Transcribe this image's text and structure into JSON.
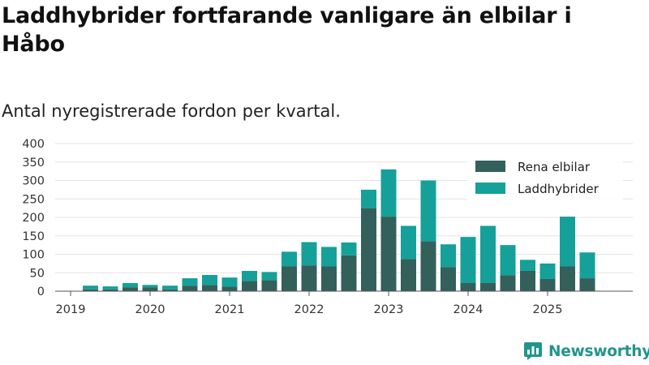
{
  "title": "Laddhybrider fortfarande vanligare än elbilar i Håbo",
  "subtitle": "Antal nyregistrerade fordon per kvartal.",
  "brand": {
    "name": "Newsworthy",
    "logo_icon": "newsworthy-logo-icon"
  },
  "colors": {
    "elbilar": "#33605b",
    "laddhybrider": "#16a09a",
    "grid": "#e3e3e3",
    "axis": "#555555",
    "brand": "#21958c"
  },
  "chart_data": {
    "type": "bar",
    "stacked": true,
    "categories": [
      "2019 Q1",
      "2019 Q2",
      "2019 Q3",
      "2019 Q4",
      "2020 Q1",
      "2020 Q2",
      "2020 Q3",
      "2020 Q4",
      "2021 Q1",
      "2021 Q2",
      "2021 Q3",
      "2021 Q4",
      "2022 Q1",
      "2022 Q2",
      "2022 Q3",
      "2022 Q4",
      "2023 Q1",
      "2023 Q2",
      "2023 Q3",
      "2023 Q4",
      "2024 Q1",
      "2024 Q2",
      "2024 Q3",
      "2024 Q4",
      "2025 Q1",
      "2025 Q2",
      "2025 Q3"
    ],
    "series": [
      {
        "name": "Rena elbilar",
        "color": "#33605b",
        "values": [
          0,
          5,
          5,
          10,
          10,
          5,
          15,
          17,
          12,
          28,
          30,
          67,
          70,
          67,
          97,
          225,
          202,
          87,
          135,
          65,
          22,
          22,
          43,
          55,
          33,
          67,
          35
        ]
      },
      {
        "name": "Laddhybrider",
        "color": "#16a09a",
        "values": [
          0,
          10,
          8,
          12,
          7,
          10,
          20,
          27,
          25,
          27,
          22,
          40,
          63,
          53,
          35,
          50,
          128,
          90,
          165,
          62,
          125,
          155,
          82,
          30,
          42,
          135,
          70
        ]
      }
    ],
    "x_tick_labels": [
      "2019",
      "2020",
      "2021",
      "2022",
      "2023",
      "2024",
      "2025"
    ],
    "x_tick_categories": [
      "2019 Q1",
      "2020 Q1",
      "2021 Q1",
      "2022 Q1",
      "2023 Q1",
      "2024 Q1",
      "2025 Q1"
    ],
    "y_ticks": [
      0,
      50,
      100,
      150,
      200,
      250,
      300,
      350,
      400
    ],
    "ylim": [
      0,
      400
    ],
    "xlabel": "",
    "ylabel": "",
    "legend": [
      "Rena elbilar",
      "Laddhybrider"
    ],
    "legend_position": "top-right",
    "grid": true
  }
}
